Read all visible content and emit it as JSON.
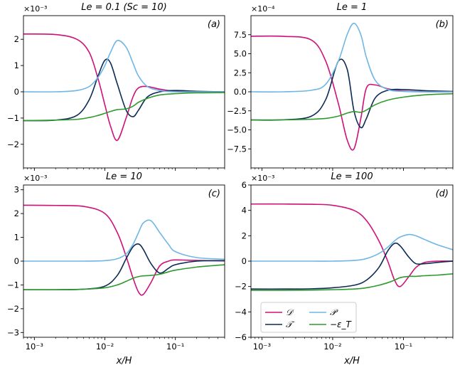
{
  "chart_data": [
    {
      "type": "line",
      "panel_label": "(a)",
      "title": "Le = 0.1 (Sc = 10)",
      "sci_label": "×10⁻³",
      "xlabel": "",
      "xscale": "log",
      "xlim": [
        0.0007,
        0.5
      ],
      "ylim": [
        -2.9,
        2.9
      ],
      "yticks": [
        -2,
        -1,
        0,
        1,
        2
      ],
      "yticklabels": [
        "−2",
        "−1",
        "0",
        "1",
        "2"
      ],
      "xticklabels": [],
      "series": [
        {
          "name": "D",
          "color": "#d0107a",
          "x": [
            0.0007,
            0.002,
            0.004,
            0.006,
            0.008,
            0.01,
            0.012,
            0.015,
            0.02,
            0.025,
            0.03,
            0.04,
            0.06,
            0.1,
            0.2,
            0.5
          ],
          "y": [
            2.2,
            2.18,
            2.0,
            1.5,
            0.5,
            -0.5,
            -1.3,
            -1.85,
            -1.0,
            -0.2,
            0.15,
            0.2,
            0.1,
            0.02,
            0.0,
            0.0
          ]
        },
        {
          "name": "T",
          "color": "#0b2a55",
          "x": [
            0.0007,
            0.002,
            0.004,
            0.006,
            0.008,
            0.01,
            0.012,
            0.015,
            0.02,
            0.025,
            0.03,
            0.04,
            0.06,
            0.1,
            0.2,
            0.5
          ],
          "y": [
            -1.1,
            -1.08,
            -0.9,
            -0.3,
            0.6,
            1.2,
            1.1,
            0.3,
            -0.7,
            -0.95,
            -0.7,
            -0.2,
            0.0,
            0.05,
            0.02,
            0.0
          ]
        },
        {
          "name": "P",
          "color": "#6eb6e6",
          "x": [
            0.0007,
            0.002,
            0.004,
            0.006,
            0.008,
            0.01,
            0.012,
            0.015,
            0.02,
            0.025,
            0.03,
            0.04,
            0.06,
            0.1,
            0.2,
            0.5
          ],
          "y": [
            0.0,
            0.0,
            0.05,
            0.2,
            0.55,
            1.0,
            1.5,
            1.95,
            1.7,
            1.1,
            0.6,
            0.2,
            0.05,
            0.0,
            0.0,
            0.0
          ]
        },
        {
          "name": "-epsT",
          "color": "#2e9a2e",
          "x": [
            0.0007,
            0.002,
            0.004,
            0.006,
            0.008,
            0.01,
            0.012,
            0.015,
            0.02,
            0.025,
            0.03,
            0.04,
            0.06,
            0.1,
            0.2,
            0.5
          ],
          "y": [
            -1.1,
            -1.08,
            -1.05,
            -0.98,
            -0.9,
            -0.82,
            -0.75,
            -0.68,
            -0.65,
            -0.55,
            -0.4,
            -0.25,
            -0.12,
            -0.07,
            -0.04,
            -0.03
          ]
        }
      ]
    },
    {
      "type": "line",
      "panel_label": "(b)",
      "title": "Le = 1",
      "sci_label": "×10⁻⁴",
      "xlabel": "",
      "xscale": "log",
      "xlim": [
        0.0007,
        0.5
      ],
      "ylim": [
        -10,
        10
      ],
      "yticks": [
        -7.5,
        -5,
        -2.5,
        0,
        2.5,
        5,
        7.5
      ],
      "yticklabels": [
        "−7.5",
        "−5.0",
        "−2.5",
        "0.0",
        "2.5",
        "5.0",
        "7.5"
      ],
      "xticklabels": [],
      "series": [
        {
          "name": "D",
          "color": "#d0107a",
          "x": [
            0.0007,
            0.002,
            0.005,
            0.008,
            0.012,
            0.016,
            0.02,
            0.025,
            0.03,
            0.04,
            0.06,
            0.1,
            0.2,
            0.5
          ],
          "y": [
            7.3,
            7.28,
            6.8,
            4.0,
            -1.5,
            -6.3,
            -7.5,
            -3.5,
            0.5,
            0.9,
            0.4,
            0.1,
            0.0,
            0.0
          ]
        },
        {
          "name": "T",
          "color": "#0b2a55",
          "x": [
            0.0007,
            0.002,
            0.005,
            0.008,
            0.012,
            0.016,
            0.02,
            0.025,
            0.03,
            0.04,
            0.06,
            0.1,
            0.2,
            0.5
          ],
          "y": [
            -3.7,
            -3.68,
            -3.2,
            -1.0,
            4.0,
            3.0,
            -2.5,
            -4.7,
            -3.5,
            -0.8,
            0.2,
            0.3,
            0.15,
            0.05
          ]
        },
        {
          "name": "P",
          "color": "#6eb6e6",
          "x": [
            0.0007,
            0.002,
            0.005,
            0.008,
            0.012,
            0.016,
            0.02,
            0.025,
            0.03,
            0.04,
            0.06,
            0.1,
            0.2,
            0.5
          ],
          "y": [
            0.0,
            0.0,
            0.2,
            1.0,
            4.0,
            7.5,
            9.0,
            7.5,
            4.5,
            1.5,
            0.3,
            0.05,
            0.0,
            0.0
          ]
        },
        {
          "name": "-epsT",
          "color": "#2e9a2e",
          "x": [
            0.0007,
            0.002,
            0.005,
            0.008,
            0.012,
            0.016,
            0.02,
            0.025,
            0.03,
            0.04,
            0.06,
            0.1,
            0.2,
            0.5
          ],
          "y": [
            -3.7,
            -3.68,
            -3.6,
            -3.5,
            -3.2,
            -2.8,
            -2.6,
            -2.7,
            -2.4,
            -1.7,
            -1.1,
            -0.7,
            -0.4,
            -0.25
          ]
        }
      ]
    },
    {
      "type": "line",
      "panel_label": "(c)",
      "title": "Le = 10",
      "sci_label": "×10⁻³",
      "xlabel": "",
      "xscale": "log",
      "xlim": [
        0.0007,
        0.5
      ],
      "ylim": [
        -3.2,
        3.2
      ],
      "yticks": [
        -3,
        -2,
        -1,
        0,
        1,
        2,
        3
      ],
      "yticklabels": [
        "−3",
        "−2",
        "−1",
        "0",
        "1",
        "2",
        "3"
      ],
      "xticklabels": [],
      "series": [
        {
          "name": "D",
          "color": "#d0107a",
          "x": [
            0.0007,
            0.002,
            0.005,
            0.01,
            0.015,
            0.02,
            0.025,
            0.03,
            0.035,
            0.045,
            0.06,
            0.08,
            0.1,
            0.2,
            0.5
          ],
          "y": [
            2.35,
            2.34,
            2.3,
            2.0,
            1.2,
            0.2,
            -0.7,
            -1.3,
            -1.4,
            -0.9,
            -0.2,
            0.0,
            0.05,
            0.03,
            0.01
          ]
        },
        {
          "name": "T",
          "color": "#0b2a55",
          "x": [
            0.0007,
            0.002,
            0.005,
            0.01,
            0.015,
            0.02,
            0.025,
            0.03,
            0.035,
            0.045,
            0.06,
            0.08,
            0.1,
            0.2,
            0.5
          ],
          "y": [
            -1.2,
            -1.2,
            -1.18,
            -1.05,
            -0.6,
            0.1,
            0.6,
            0.72,
            0.5,
            -0.1,
            -0.5,
            -0.3,
            -0.15,
            0.0,
            0.02
          ]
        },
        {
          "name": "P",
          "color": "#6eb6e6",
          "x": [
            0.0007,
            0.002,
            0.005,
            0.01,
            0.015,
            0.02,
            0.025,
            0.03,
            0.035,
            0.045,
            0.06,
            0.08,
            0.1,
            0.2,
            0.5
          ],
          "y": [
            0.0,
            0.0,
            0.0,
            0.02,
            0.1,
            0.3,
            0.7,
            1.2,
            1.6,
            1.7,
            1.2,
            0.7,
            0.4,
            0.15,
            0.08
          ]
        },
        {
          "name": "-epsT",
          "color": "#2e9a2e",
          "x": [
            0.0007,
            0.002,
            0.005,
            0.01,
            0.015,
            0.02,
            0.025,
            0.03,
            0.035,
            0.045,
            0.06,
            0.08,
            0.1,
            0.2,
            0.5
          ],
          "y": [
            -1.2,
            -1.2,
            -1.18,
            -1.12,
            -1.0,
            -0.85,
            -0.72,
            -0.65,
            -0.62,
            -0.6,
            -0.55,
            -0.45,
            -0.38,
            -0.25,
            -0.15
          ]
        }
      ]
    },
    {
      "type": "line",
      "panel_label": "(d)",
      "title": "Le = 100",
      "sci_label": "×10⁻³",
      "xlabel": "x/H",
      "xscale": "log",
      "xlim": [
        0.0007,
        0.5
      ],
      "ylim": [
        -6,
        6
      ],
      "yticks": [
        -6,
        -4,
        -2,
        0,
        2,
        4,
        6
      ],
      "yticklabels": [
        "−6",
        "−4",
        "−2",
        "0",
        "2",
        "4",
        "6"
      ],
      "xticklabels": [
        "10⁻³",
        "10⁻²",
        "10⁻¹"
      ],
      "series": [
        {
          "name": "D",
          "color": "#d0107a",
          "x": [
            0.0007,
            0.002,
            0.005,
            0.01,
            0.02,
            0.03,
            0.045,
            0.06,
            0.075,
            0.09,
            0.12,
            0.15,
            0.2,
            0.3,
            0.5
          ],
          "y": [
            4.5,
            4.5,
            4.48,
            4.4,
            4.0,
            3.2,
            1.6,
            0.0,
            -1.5,
            -2.0,
            -1.2,
            -0.5,
            -0.1,
            0.0,
            0.0
          ]
        },
        {
          "name": "T",
          "color": "#0b2a55",
          "x": [
            0.0007,
            0.002,
            0.005,
            0.01,
            0.02,
            0.03,
            0.045,
            0.06,
            0.075,
            0.09,
            0.12,
            0.15,
            0.2,
            0.3,
            0.5
          ],
          "y": [
            -2.2,
            -2.2,
            -2.18,
            -2.1,
            -1.9,
            -1.5,
            -0.5,
            0.8,
            1.4,
            1.2,
            0.3,
            -0.2,
            -0.2,
            -0.1,
            0.0
          ]
        },
        {
          "name": "P",
          "color": "#6eb6e6",
          "x": [
            0.0007,
            0.002,
            0.005,
            0.01,
            0.02,
            0.03,
            0.045,
            0.06,
            0.075,
            0.09,
            0.12,
            0.15,
            0.2,
            0.3,
            0.5
          ],
          "y": [
            0.0,
            0.0,
            0.0,
            0.0,
            0.05,
            0.2,
            0.6,
            1.1,
            1.6,
            1.9,
            2.1,
            2.0,
            1.7,
            1.3,
            0.9
          ]
        },
        {
          "name": "-epsT",
          "color": "#2e9a2e",
          "x": [
            0.0007,
            0.002,
            0.005,
            0.01,
            0.02,
            0.03,
            0.045,
            0.06,
            0.075,
            0.09,
            0.12,
            0.15,
            0.2,
            0.3,
            0.5
          ],
          "y": [
            -2.3,
            -2.3,
            -2.28,
            -2.25,
            -2.2,
            -2.1,
            -1.9,
            -1.7,
            -1.5,
            -1.3,
            -1.2,
            -1.2,
            -1.15,
            -1.1,
            -1.0
          ]
        }
      ]
    }
  ],
  "legend": {
    "placement": "bottom-left of panel (d)",
    "entries": [
      {
        "label": "𝒟",
        "color": "#d0107a"
      },
      {
        "label": "𝒫",
        "color": "#6eb6e6"
      },
      {
        "label": "𝒯",
        "color": "#0b2a55"
      },
      {
        "label": "−ε_T",
        "color": "#2e9a2e"
      }
    ]
  }
}
